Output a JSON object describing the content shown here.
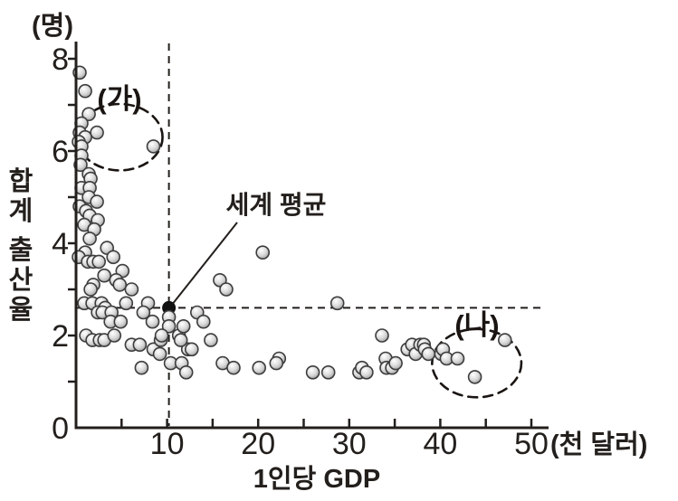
{
  "colors": {
    "axis": "#231f1c",
    "dashed_line": "#231f1c",
    "annotation_ellipse": "#1a1512",
    "point_stroke": "#3d3d3d",
    "point_fill_light": "#ffffff",
    "point_fill_mid": "#d9d9d9",
    "point_fill_dark": "#9c9c9c",
    "world_average_dot": "#111111",
    "background": "#ffffff"
  },
  "chart_data": {
    "type": "scatter",
    "title": "",
    "xlabel": "1인당 GDP",
    "x_unit_label": "(천 달러)",
    "ylabel": "합계 출산율",
    "y_unit_label": "(명)",
    "xlim": [
      0,
      50
    ],
    "ylim": [
      0,
      8
    ],
    "x_tick_labels": [
      10,
      20,
      30,
      40,
      50
    ],
    "x_minor_tick_step": 5,
    "y_tick_labels": [
      0,
      2,
      4,
      6,
      8
    ],
    "y_minor_tick_step": 1,
    "grid": false,
    "legend": "none",
    "reference_lines": {
      "style": "dashed",
      "vertical_x": 10.2,
      "horizontal_y": 2.6
    },
    "world_average": {
      "label": "세계 평균",
      "x": 10.2,
      "y": 2.6,
      "label_x": 22.0,
      "label_y": 4.9
    },
    "annotations": [
      {
        "id": "group-a",
        "label": "(가)",
        "cx": 4.8,
        "cy": 6.3,
        "rx": 4.7,
        "ry": 0.72,
        "label_x": 4.8,
        "label_y": 7.15
      },
      {
        "id": "group-b",
        "label": "(나)",
        "cx": 44.0,
        "cy": 1.4,
        "rx": 4.9,
        "ry": 0.74,
        "label_x": 44.0,
        "label_y": 2.22
      }
    ],
    "points": [
      [
        0.4,
        7.7
      ],
      [
        1.0,
        7.3
      ],
      [
        1.4,
        6.8
      ],
      [
        0.6,
        6.6
      ],
      [
        0.4,
        6.4
      ],
      [
        2.3,
        6.4
      ],
      [
        1.0,
        6.3
      ],
      [
        0.3,
        6.2
      ],
      [
        0.6,
        6.1
      ],
      [
        8.5,
        6.1
      ],
      [
        0.6,
        5.9
      ],
      [
        0.5,
        5.7
      ],
      [
        1.4,
        5.5
      ],
      [
        1.6,
        5.4
      ],
      [
        0.6,
        5.2
      ],
      [
        1.5,
        5.2
      ],
      [
        1.4,
        5.0
      ],
      [
        2.3,
        4.9
      ],
      [
        0.4,
        4.8
      ],
      [
        1.1,
        4.7
      ],
      [
        1.5,
        4.6
      ],
      [
        2.4,
        4.5
      ],
      [
        0.9,
        4.4
      ],
      [
        2.0,
        4.3
      ],
      [
        1.5,
        4.1
      ],
      [
        3.4,
        3.9
      ],
      [
        1.0,
        3.8
      ],
      [
        0.3,
        3.7
      ],
      [
        4.1,
        3.7
      ],
      [
        1.3,
        3.6
      ],
      [
        1.9,
        3.6
      ],
      [
        2.5,
        3.6
      ],
      [
        5.1,
        3.4
      ],
      [
        3.1,
        3.3
      ],
      [
        4.4,
        3.2
      ],
      [
        4.8,
        3.1
      ],
      [
        1.9,
        3.1
      ],
      [
        1.6,
        3.0
      ],
      [
        6.1,
        3.0
      ],
      [
        0.9,
        2.7
      ],
      [
        1.8,
        2.7
      ],
      [
        2.8,
        2.7
      ],
      [
        3.2,
        2.6
      ],
      [
        5.5,
        2.7
      ],
      [
        7.9,
        2.7
      ],
      [
        2.4,
        2.5
      ],
      [
        2.9,
        2.5
      ],
      [
        3.9,
        2.5
      ],
      [
        7.4,
        2.5
      ],
      [
        3.8,
        2.3
      ],
      [
        4.9,
        2.3
      ],
      [
        8.4,
        2.3
      ],
      [
        1.1,
        2.0
      ],
      [
        1.8,
        1.9
      ],
      [
        2.6,
        1.9
      ],
      [
        3.1,
        1.9
      ],
      [
        4.2,
        2.0
      ],
      [
        6.1,
        1.8
      ],
      [
        7.0,
        1.8
      ],
      [
        8.5,
        1.7
      ],
      [
        9.2,
        1.6
      ],
      [
        9.3,
        1.9
      ],
      [
        7.2,
        1.3
      ],
      [
        10.2,
        2.4
      ],
      [
        10.2,
        2.2
      ],
      [
        9.4,
        2.0
      ],
      [
        11.3,
        2.0
      ],
      [
        12.3,
        1.7
      ],
      [
        10.4,
        1.4
      ],
      [
        11.6,
        1.4
      ],
      [
        12.1,
        1.2
      ],
      [
        13.3,
        2.5
      ],
      [
        14.0,
        2.3
      ],
      [
        11.8,
        2.2
      ],
      [
        11.5,
        1.9
      ],
      [
        14.8,
        1.9
      ],
      [
        12.7,
        1.7
      ],
      [
        16.1,
        1.4
      ],
      [
        17.3,
        1.3
      ],
      [
        20.1,
        1.3
      ],
      [
        22.3,
        1.5
      ],
      [
        22.0,
        1.4
      ],
      [
        26.0,
        1.2
      ],
      [
        27.7,
        1.2
      ],
      [
        28.7,
        2.7
      ],
      [
        20.5,
        3.8
      ],
      [
        15.8,
        3.2
      ],
      [
        16.5,
        3.0
      ],
      [
        33.6,
        2.0
      ],
      [
        34.0,
        1.5
      ],
      [
        31.1,
        1.2
      ],
      [
        31.4,
        1.3
      ],
      [
        31.9,
        1.2
      ],
      [
        34.1,
        1.3
      ],
      [
        34.7,
        1.3
      ],
      [
        35.1,
        1.4
      ],
      [
        36.4,
        1.7
      ],
      [
        36.9,
        1.8
      ],
      [
        37.3,
        1.6
      ],
      [
        37.8,
        1.8
      ],
      [
        38.2,
        1.8
      ],
      [
        38.3,
        1.7
      ],
      [
        38.7,
        1.6
      ],
      [
        40.1,
        1.6
      ],
      [
        40.3,
        1.7
      ],
      [
        40.7,
        1.5
      ],
      [
        41.9,
        1.5
      ],
      [
        43.8,
        1.1
      ],
      [
        47.1,
        1.9
      ]
    ]
  }
}
